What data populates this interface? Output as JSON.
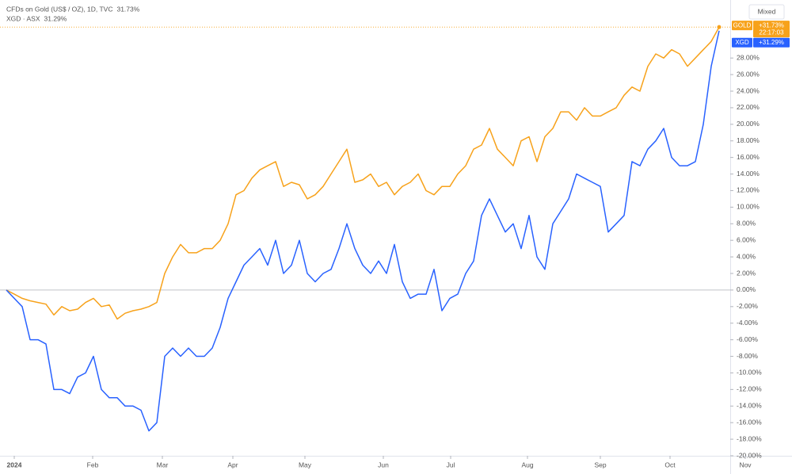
{
  "chart_data": {
    "type": "line",
    "ylim": [
      -20,
      35
    ],
    "xlim": [
      -0.8,
      91.4
    ],
    "yticks": [
      {
        "value": -20,
        "label": "-20.00%"
      },
      {
        "value": -18,
        "label": "-18.00%"
      },
      {
        "value": -16,
        "label": "-16.00%"
      },
      {
        "value": -14,
        "label": "-14.00%"
      },
      {
        "value": -12,
        "label": "-12.00%"
      },
      {
        "value": -10,
        "label": "-10.00%"
      },
      {
        "value": -8,
        "label": "-8.00%"
      },
      {
        "value": -6,
        "label": "-6.00%"
      },
      {
        "value": -4,
        "label": "-4.00%"
      },
      {
        "value": -2,
        "label": "-2.00%"
      },
      {
        "value": 0,
        "label": "0.00%"
      },
      {
        "value": 2,
        "label": "2.00%"
      },
      {
        "value": 4,
        "label": "4.00%"
      },
      {
        "value": 6,
        "label": "6.00%"
      },
      {
        "value": 8,
        "label": "8.00%"
      },
      {
        "value": 10,
        "label": "10.00%"
      },
      {
        "value": 12,
        "label": "12.00%"
      },
      {
        "value": 14,
        "label": "14.00%"
      },
      {
        "value": 16,
        "label": "16.00%"
      },
      {
        "value": 18,
        "label": "18.00%"
      },
      {
        "value": 20,
        "label": "20.00%"
      },
      {
        "value": 22,
        "label": "22.00%"
      },
      {
        "value": 24,
        "label": "24.00%"
      },
      {
        "value": 26,
        "label": "26.00%"
      },
      {
        "value": 28,
        "label": "28.00%"
      }
    ],
    "xticks": [
      {
        "value": 1.0,
        "label": "2024"
      },
      {
        "value": 10.9,
        "label": "Feb"
      },
      {
        "value": 19.7,
        "label": "Mar"
      },
      {
        "value": 28.6,
        "label": "Apr"
      },
      {
        "value": 37.7,
        "label": "May"
      },
      {
        "value": 47.6,
        "label": "Jun"
      },
      {
        "value": 56.1,
        "label": "Jul"
      },
      {
        "value": 65.8,
        "label": "Aug"
      },
      {
        "value": 75.0,
        "label": "Sep"
      },
      {
        "value": 83.8,
        "label": "Oct"
      },
      {
        "value": 93.3,
        "label": "Nov"
      }
    ],
    "scale_mode": "Mixed",
    "countdown": "22:17:03",
    "series": [
      {
        "name": "CFDs on Gold (US$ / OZ), 1D, TVC",
        "tag": "GOLD",
        "color": "#f7a21b",
        "legend_value": "31.73%",
        "tag_value": "+31.73%",
        "values": [
          0,
          -0.5,
          -1,
          -1.3,
          -1.5,
          -1.7,
          -3,
          -2,
          -2.5,
          -2.3,
          -1.5,
          -1,
          -2,
          -1.8,
          -3.5,
          -2.8,
          -2.5,
          -2.3,
          -2,
          -1.5,
          2,
          4,
          5.5,
          4.5,
          4.5,
          5,
          5,
          6,
          8,
          11.5,
          12,
          13.5,
          14.5,
          15,
          15.5,
          12.5,
          13,
          12.7,
          11,
          11.5,
          12.5,
          14,
          15.5,
          17,
          13,
          13.3,
          14,
          12.5,
          13,
          11.5,
          12.5,
          13,
          14,
          12,
          11.5,
          12.5,
          12.5,
          14,
          15,
          17,
          17.5,
          19.5,
          17,
          16,
          15,
          18,
          18.5,
          15.5,
          18.5,
          19.5,
          21.5,
          21.5,
          20.5,
          22,
          21,
          21,
          21.5,
          22,
          23.5,
          24.5,
          24,
          27,
          28.5,
          28,
          29,
          28.5,
          27,
          28,
          29,
          30,
          31.73
        ]
      },
      {
        "name": "XGD · ASX",
        "tag": "XGD",
        "color": "#2962ff",
        "legend_value": "31.29%",
        "tag_value": "+31.29%",
        "values": [
          0,
          -1,
          -2,
          -6,
          -6,
          -6.5,
          -12,
          -12,
          -12.5,
          -10.5,
          -10,
          -8,
          -12,
          -13,
          -13,
          -14,
          -14,
          -14.5,
          -17,
          -16,
          -8,
          -7,
          -8,
          -7,
          -8,
          -8,
          -7,
          -4.5,
          -1,
          1,
          3,
          4,
          5,
          3,
          6,
          2,
          3,
          6,
          2,
          1,
          2,
          2.5,
          5,
          8,
          5,
          3,
          2,
          3.5,
          2,
          5.5,
          1,
          -1,
          -0.5,
          -0.5,
          2.5,
          -2.5,
          -1,
          -0.5,
          2,
          3.5,
          9,
          11,
          9,
          7,
          8,
          5,
          9,
          4,
          2.5,
          8,
          9.5,
          11,
          14,
          13.5,
          13,
          12.5,
          7,
          8,
          9,
          15.5,
          15,
          17,
          18,
          19.5,
          16,
          15,
          15,
          15.5,
          20,
          27,
          31.29
        ]
      }
    ]
  }
}
